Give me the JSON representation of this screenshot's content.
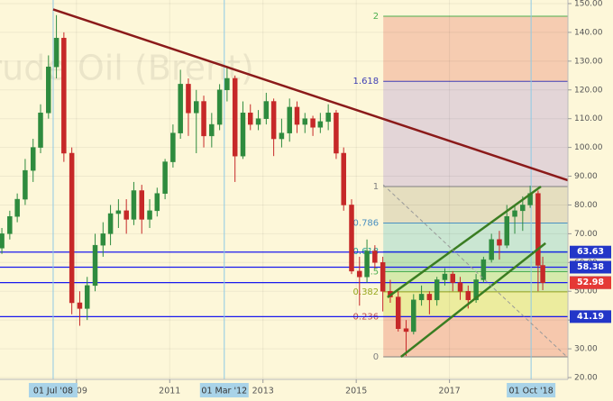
{
  "chart_data": {
    "type": "candlestick",
    "watermark": "Crude Oil (Brent)",
    "x": [
      2007.4,
      2007.57,
      2007.73,
      2007.9,
      2008.07,
      2008.23,
      2008.4,
      2008.57,
      2008.73,
      2008.9,
      2009.07,
      2009.23,
      2009.4,
      2009.57,
      2009.73,
      2009.9,
      2010.07,
      2010.23,
      2010.4,
      2010.57,
      2010.73,
      2010.9,
      2011.07,
      2011.23,
      2011.4,
      2011.57,
      2011.73,
      2011.9,
      2012.07,
      2012.23,
      2012.4,
      2012.57,
      2012.73,
      2012.9,
      2013.07,
      2013.23,
      2013.4,
      2013.57,
      2013.73,
      2013.9,
      2014.07,
      2014.23,
      2014.4,
      2014.57,
      2014.73,
      2014.9,
      2015.07,
      2015.23,
      2015.4,
      2015.57,
      2015.73,
      2015.9,
      2016.07,
      2016.23,
      2016.4,
      2016.57,
      2016.73,
      2016.9,
      2017.07,
      2017.23,
      2017.4,
      2017.57,
      2017.73,
      2017.9,
      2018.07,
      2018.23,
      2018.4,
      2018.57,
      2018.73,
      2018.9,
      2019.0
    ],
    "open": [
      65,
      70,
      76,
      82,
      92,
      100,
      112,
      128,
      138,
      98,
      46,
      44,
      52,
      66,
      70,
      77,
      78,
      75,
      85,
      75,
      78,
      84,
      95,
      105,
      122,
      112,
      116,
      104,
      108,
      120,
      124,
      97,
      112,
      108,
      110,
      116,
      103,
      105,
      114,
      108,
      110,
      107,
      109,
      112,
      98,
      80,
      57,
      55,
      64,
      60,
      50,
      48,
      37,
      36,
      47,
      49,
      47,
      54,
      56,
      53,
      50,
      47,
      54,
      61,
      68,
      66,
      76,
      78,
      80,
      84,
      59
    ],
    "high": [
      72,
      78,
      84,
      96,
      103,
      115,
      132,
      146,
      140,
      100,
      50,
      55,
      70,
      74,
      80,
      82,
      82,
      88,
      87,
      82,
      86,
      96,
      108,
      127,
      124,
      120,
      118,
      112,
      122,
      128,
      125,
      116,
      115,
      113,
      119,
      117,
      110,
      117,
      116,
      112,
      111,
      112,
      115,
      113,
      100,
      82,
      62,
      68,
      66,
      62,
      54,
      50,
      40,
      49,
      52,
      50,
      55,
      58,
      57,
      55,
      52,
      56,
      62,
      70,
      71,
      80,
      80,
      83,
      86.7,
      85,
      62
    ],
    "low": [
      63,
      68,
      74,
      80,
      88,
      98,
      110,
      124,
      95,
      42,
      38,
      40,
      50,
      62,
      66,
      72,
      70,
      73,
      70,
      72,
      76,
      82,
      93,
      103,
      104,
      98,
      100,
      100,
      106,
      116,
      88,
      96,
      106,
      106,
      108,
      97,
      100,
      102,
      105,
      105,
      104,
      105,
      106,
      96,
      78,
      56,
      45,
      53,
      58,
      43,
      46,
      36,
      27.5,
      35,
      45,
      42,
      45,
      52,
      50,
      47,
      44,
      46,
      53,
      60,
      61,
      65,
      70,
      71,
      79,
      50,
      50.4
    ],
    "close": [
      70,
      76,
      82,
      92,
      100,
      112,
      128,
      138,
      98,
      46,
      44,
      52,
      66,
      70,
      77,
      78,
      75,
      85,
      75,
      78,
      84,
      95,
      105,
      122,
      112,
      116,
      104,
      108,
      120,
      124,
      97,
      112,
      108,
      110,
      116,
      103,
      105,
      114,
      108,
      110,
      107,
      109,
      112,
      98,
      80,
      57,
      55,
      64,
      60,
      50,
      48,
      37,
      36,
      47,
      49,
      47,
      54,
      56,
      53,
      50,
      47,
      54,
      61,
      68,
      66,
      76,
      78,
      80,
      84,
      59,
      52.98
    ],
    "up_color": "#2e8b3e",
    "down_color": "#c62828",
    "xlim": [
      2007.36,
      2019.54
    ],
    "ylim": [
      20,
      150
    ],
    "xticks": [
      2009,
      2011,
      2013,
      2015,
      2017
    ],
    "yticks": [
      {
        "value": 20,
        "label": "20.00"
      },
      {
        "value": 30,
        "label": "30.00"
      },
      {
        "value": 40,
        "label": "40.00"
      },
      {
        "value": 50,
        "label": "50.00"
      },
      {
        "value": 60,
        "label": "60.00"
      },
      {
        "value": 70,
        "label": "70.00"
      },
      {
        "value": 80,
        "label": "80.00"
      },
      {
        "value": 90,
        "label": "90.00"
      },
      {
        "value": 100,
        "label": "100.00"
      },
      {
        "value": 110,
        "label": "110.00"
      },
      {
        "value": 120,
        "label": "120.00"
      },
      {
        "value": 130,
        "label": "130.00"
      },
      {
        "value": 140,
        "label": "140.00"
      },
      {
        "value": 150,
        "label": "150.00"
      }
    ],
    "grid": true,
    "fib": {
      "x_start": 2015.58,
      "low": 27.2,
      "high": 86.4,
      "levels": [
        0,
        0.236,
        0.382,
        0.5,
        0.618,
        0.786,
        1,
        1.618,
        2
      ],
      "level_colors": [
        "#808080",
        "#c0504d",
        "#9aaa20",
        "#4caf50",
        "#26a69a",
        "#4a90c0",
        "#808080",
        "#3f3fb5",
        "#4caf50"
      ],
      "band_colors": [
        "#f3b89e",
        "#e6e88a",
        "#c7e59c",
        "#aadba8",
        "#b8e0cf",
        "#dcd6b6",
        "#d9c9d6",
        "#f3bda3"
      ]
    },
    "hlines": {
      "values": [
        63.63,
        58.38,
        53.02,
        41.19
      ],
      "color": "#1a1aee"
    },
    "last_price": {
      "value": 52.98,
      "color": "#e53935"
    },
    "markers": [
      {
        "x": 2008.5,
        "label": "01 Jul '08"
      },
      {
        "x": 2012.17,
        "label": "01 Mar '12"
      },
      {
        "x": 2018.75,
        "label": "01 Oct '18"
      }
    ],
    "trendlines": [
      {
        "color": "#8b1a1a",
        "points": [
          [
            2008.5,
            148
          ],
          [
            2019.54,
            88.6
          ]
        ]
      },
      {
        "color": "#3a7d22",
        "points": [
          [
            2015.67,
            47.9
          ],
          [
            2018.96,
            86.4
          ]
        ]
      },
      {
        "color": "#3a7d22",
        "points": [
          [
            2015.96,
            27.2
          ],
          [
            2019.06,
            66.7
          ]
        ]
      },
      {
        "color": "#999999",
        "dashed": true,
        "points": [
          [
            2015.58,
            87.0
          ],
          [
            2019.54,
            26.9
          ]
        ]
      }
    ]
  }
}
